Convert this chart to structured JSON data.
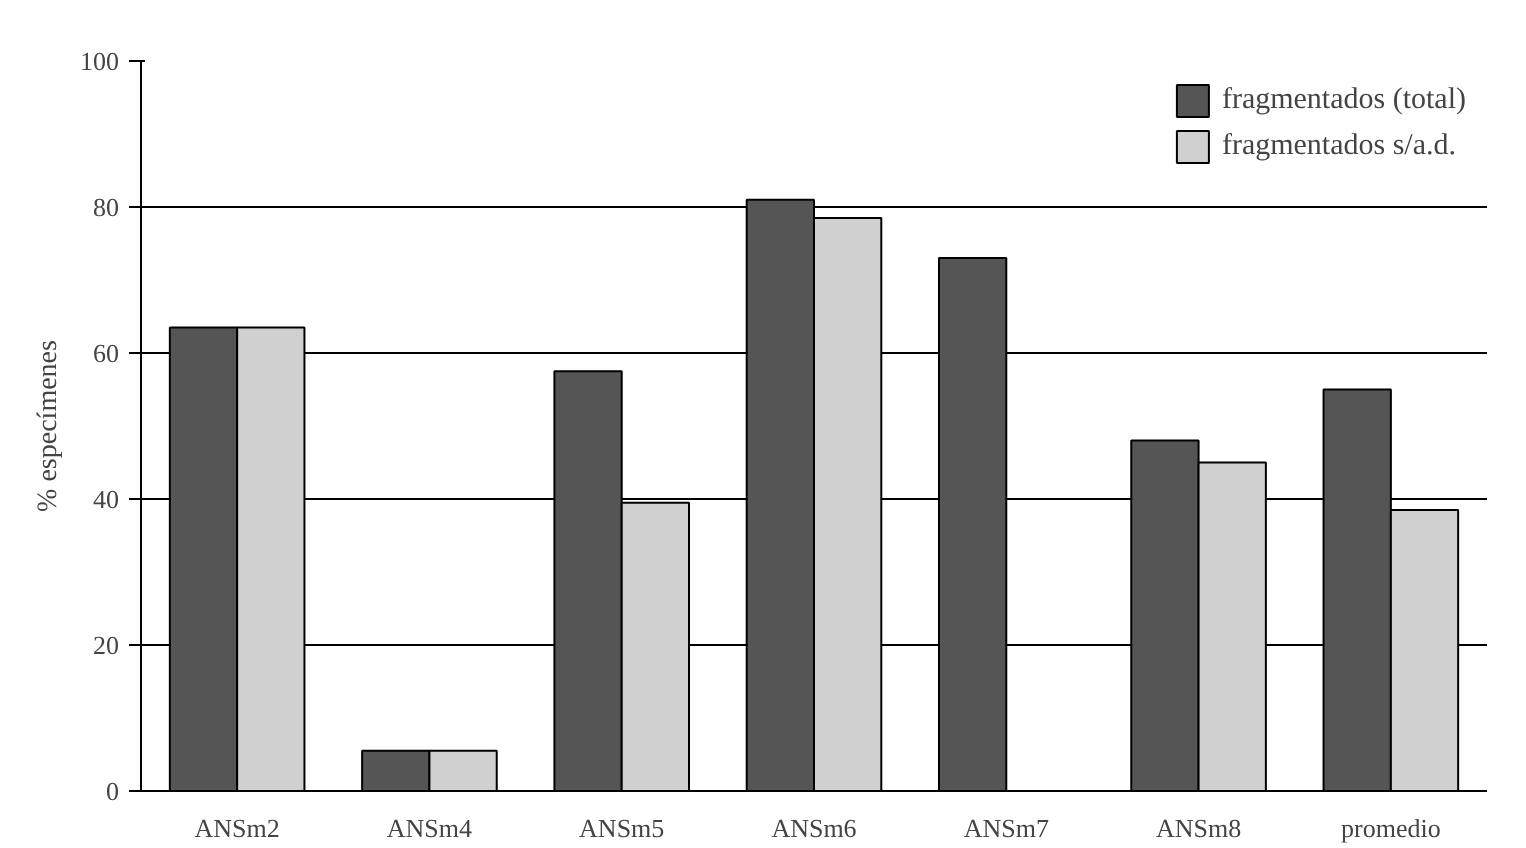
{
  "chart_data": {
    "type": "bar",
    "ylabel": "% especímenes",
    "categories": [
      "ANSm2",
      "ANSm4",
      "ANSm5",
      "ANSm6",
      "ANSm7",
      "ANSm8",
      "promedio"
    ],
    "series": [
      {
        "name": "fragmentados (total)",
        "color": "#555555",
        "values": [
          63.5,
          5.5,
          57.5,
          81,
          73,
          48,
          55
        ]
      },
      {
        "name": "fragmentados s/a.d.",
        "color": "#d0d0d0",
        "values": [
          63.5,
          5.5,
          39.5,
          78.5,
          null,
          45,
          38.5
        ]
      }
    ],
    "ylim": [
      0,
      100
    ],
    "yticks": [
      0,
      20,
      40,
      60,
      80,
      100
    ],
    "grid": "y",
    "legend": "top right"
  }
}
